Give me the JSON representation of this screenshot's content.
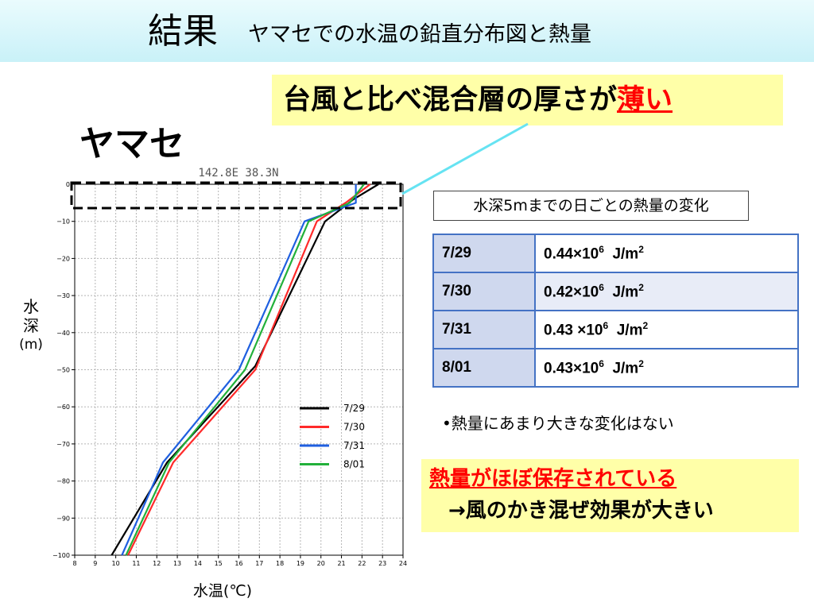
{
  "header": {
    "title_main": "結果",
    "title_sub": "ヤマセでの水温の鉛直分布図と熱量"
  },
  "callout": {
    "text_pre": "台風と比べ混合層の厚さが",
    "text_highlight": "薄い"
  },
  "yamase_label": "ヤマセ",
  "chart_data": {
    "type": "line",
    "title": "142.8E  38.3N",
    "xlabel": "水温(℃)",
    "ylabel": [
      "水",
      "深",
      "(m)"
    ],
    "xlim": [
      8,
      24
    ],
    "ylim": [
      -100,
      0
    ],
    "x_ticks": [
      8,
      9,
      10,
      11,
      12,
      13,
      14,
      15,
      16,
      17,
      18,
      19,
      20,
      21,
      22,
      23,
      24
    ],
    "y_ticks": [
      0,
      -10,
      -20,
      -30,
      -40,
      -50,
      -60,
      -70,
      -80,
      -90,
      -100
    ],
    "y_tick_labels": [
      "0",
      "−10",
      "−20",
      "−30",
      "−40",
      "−50",
      "−60",
      "−70",
      "−80",
      "−90",
      "−100"
    ],
    "grid": true,
    "legend_position": "lower-right",
    "series": [
      {
        "name": "7/29",
        "color": "#000000",
        "points": [
          [
            22.8,
            0
          ],
          [
            21.6,
            -4
          ],
          [
            20.2,
            -10
          ],
          [
            16.8,
            -49
          ],
          [
            12.5,
            -75
          ],
          [
            9.8,
            -100
          ]
        ]
      },
      {
        "name": "7/30",
        "color": "#ff2a2a",
        "points": [
          [
            22.4,
            0
          ],
          [
            21.2,
            -5
          ],
          [
            19.8,
            -10
          ],
          [
            16.8,
            -50
          ],
          [
            12.8,
            -75
          ],
          [
            10.6,
            -100
          ]
        ]
      },
      {
        "name": "7/31",
        "color": "#1f5fe0",
        "points": [
          [
            21.7,
            0
          ],
          [
            21.7,
            -5
          ],
          [
            19.2,
            -10
          ],
          [
            16.0,
            -50
          ],
          [
            12.3,
            -75
          ],
          [
            10.3,
            -100
          ]
        ]
      },
      {
        "name": "8/01",
        "color": "#22b03a",
        "points": [
          [
            22.1,
            0
          ],
          [
            21.4,
            -5
          ],
          [
            19.4,
            -10
          ],
          [
            16.3,
            -50
          ],
          [
            12.6,
            -75
          ],
          [
            10.5,
            -100
          ]
        ]
      }
    ],
    "highlight_box": {
      "x_range": [
        8,
        24
      ],
      "y_range": [
        0,
        -6
      ],
      "style": "dashed"
    }
  },
  "heat": {
    "title": "水深5mまでの日ごとの熱量の変化",
    "unit_label": "J/m",
    "unit_exp": "2",
    "rows": [
      {
        "date": "7/29",
        "value": "0.44×10",
        "exp": "6"
      },
      {
        "date": "7/30",
        "value": "0.42×10",
        "exp": "6"
      },
      {
        "date": "7/31",
        "value": "0.43 ×10",
        "exp": "6"
      },
      {
        "date": "8/01",
        "value": "0.43×10",
        "exp": "6"
      }
    ]
  },
  "bullet_text": "•熱量にあまり大きな変化はない",
  "conclusion": {
    "line1": "熱量がほぼ保存されている",
    "line2": "→風のかき混ぜ効果が大きい"
  },
  "colors": {
    "title_bar": "#c9f1f8",
    "callout_bg": "#ffffa8",
    "highlight_red": "#ff0000",
    "table_border": "#4472c4",
    "connector": "#66e3f2"
  }
}
